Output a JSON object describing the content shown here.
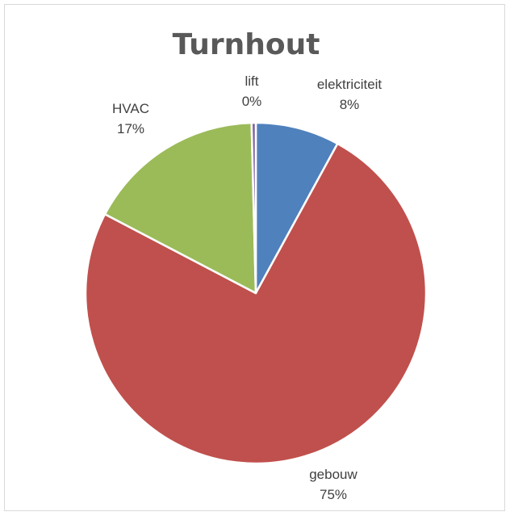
{
  "chart_data": {
    "type": "pie",
    "title": "Turnhout",
    "slices": [
      {
        "name": "elektriciteit",
        "value": 8,
        "percent_label": "8%",
        "color": "#4F81BD"
      },
      {
        "name": "gebouw",
        "value": 75,
        "percent_label": "75%",
        "color": "#C0504D"
      },
      {
        "name": "HVAC",
        "value": 17,
        "percent_label": "17%",
        "color": "#9BBB59"
      },
      {
        "name": "lift",
        "value": 0.4,
        "percent_label": "0%",
        "color": "#8064A2"
      }
    ],
    "legend": "none",
    "data_labels": "category-and-percent"
  }
}
